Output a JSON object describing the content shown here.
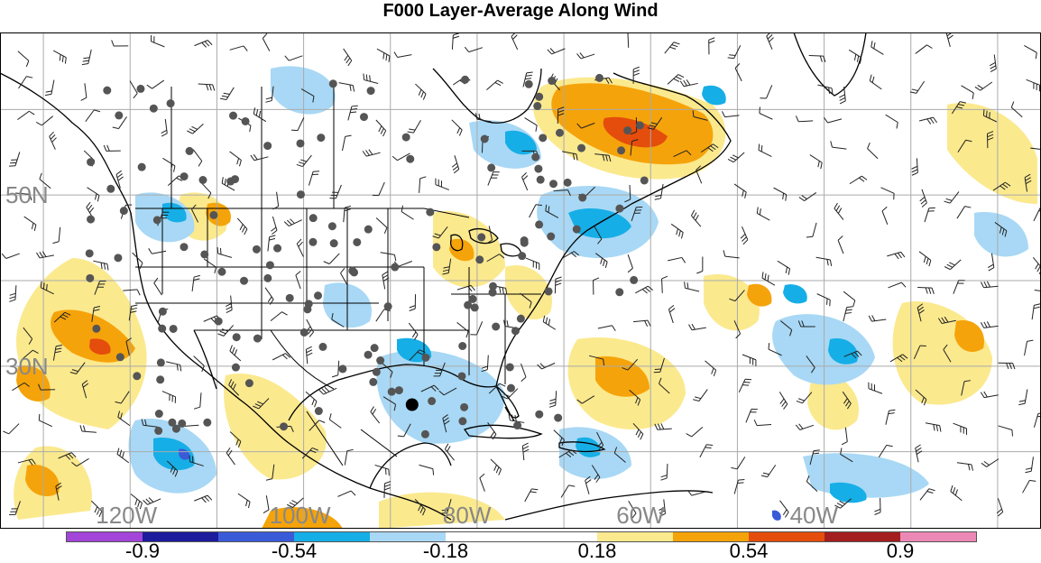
{
  "title": "F000 Layer-Average Along Wind",
  "map": {
    "projection": "cylindrical-equidistant",
    "lon_range": [
      -135,
      -15
    ],
    "lat_range": [
      11,
      69
    ],
    "grid_lons": [
      -130,
      -120,
      -110,
      -100,
      -90,
      -80,
      -70,
      -60,
      -50,
      -40,
      -30,
      -20
    ],
    "grid_lats": [
      20,
      30,
      40,
      50,
      60
    ],
    "lat_labels": [
      {
        "lat": 50,
        "text": "50N"
      },
      {
        "lat": 30,
        "text": "30N"
      }
    ],
    "lon_labels": [
      {
        "lon": -120,
        "text": "120W"
      },
      {
        "lon": -100,
        "text": "100W"
      },
      {
        "lon": -80,
        "text": "80W"
      },
      {
        "lon": -60,
        "text": "60W"
      },
      {
        "lon": -40,
        "text": "40W"
      }
    ],
    "highlight_point": {
      "lon": -87.5,
      "lat": 25.5
    },
    "layers": [
      "filled-contours",
      "wind-barbs",
      "station-dots",
      "coastlines",
      "state-borders",
      "graticule"
    ]
  },
  "colorbar": {
    "colors": [
      "#a245d8",
      "#1c1c9c",
      "#3a5bd8",
      "#16aee6",
      "#a8d8f5",
      "#ffffff",
      "#ffffff",
      "#fbe98e",
      "#f5a30a",
      "#e44d0c",
      "#a31e1e",
      "#ec88b6"
    ],
    "labels": [
      {
        "pos": 1,
        "text": "-0.9"
      },
      {
        "pos": 3,
        "text": "-0.54"
      },
      {
        "pos": 5,
        "text": "-0.18"
      },
      {
        "pos": 7,
        "text": "0.18"
      },
      {
        "pos": 9,
        "text": "0.54"
      },
      {
        "pos": 11,
        "text": "0.9"
      }
    ]
  }
}
